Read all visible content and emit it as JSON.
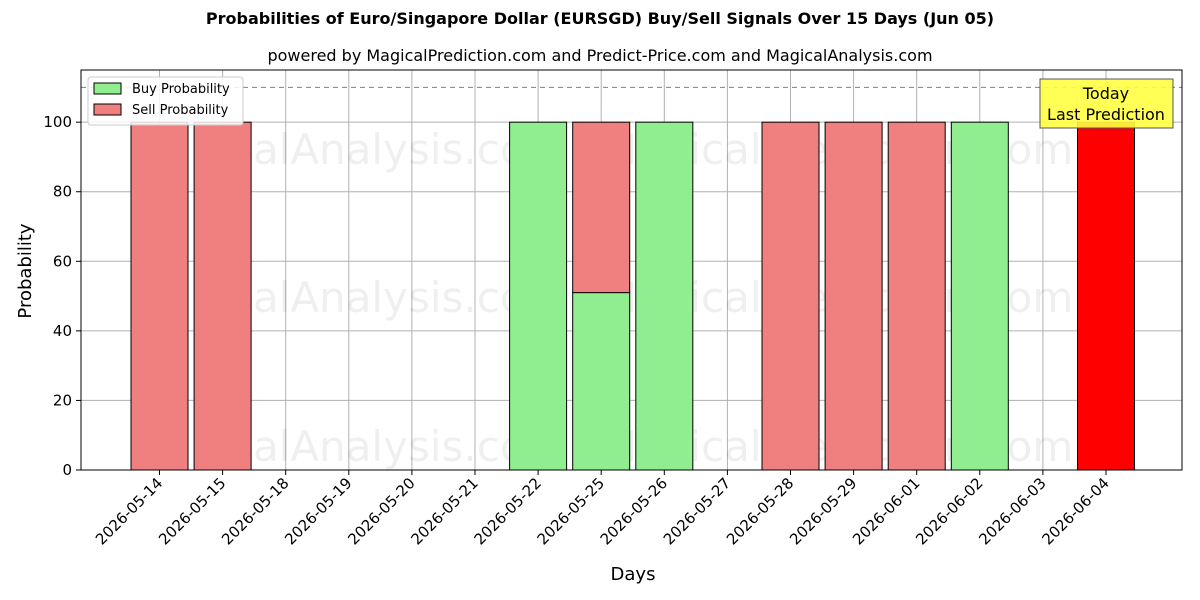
{
  "chart_data": {
    "type": "bar",
    "title": "Probabilities of Euro/Singapore Dollar (EURSGD) Buy/Sell Signals Over 15 Days (Jun 05)",
    "subtitle": "powered by MagicalPrediction.com and Predict-Price.com and MagicalAnalysis.com",
    "xlabel": "Days",
    "ylabel": "Probability",
    "ylim": [
      0,
      115
    ],
    "yticks": [
      0,
      20,
      40,
      60,
      80,
      100
    ],
    "grid": true,
    "legend_position": "top-left",
    "reference_line": 110,
    "categories": [
      "2026-05-14",
      "2026-05-15",
      "2026-05-18",
      "2026-05-19",
      "2026-05-20",
      "2026-05-21",
      "2026-05-22",
      "2026-05-25",
      "2026-05-26",
      "2026-05-27",
      "2026-05-28",
      "2026-05-29",
      "2026-06-01",
      "2026-06-02",
      "2026-06-03",
      "2026-06-04"
    ],
    "series": [
      {
        "name": "Buy Probability",
        "color": "#90ee90",
        "values": [
          0,
          0,
          0,
          0,
          0,
          0,
          100,
          51,
          100,
          0,
          0,
          0,
          0,
          100,
          0,
          0
        ]
      },
      {
        "name": "Sell Probability",
        "color": "#f08080",
        "values": [
          100,
          100,
          0,
          0,
          0,
          0,
          0,
          49,
          0,
          0,
          100,
          100,
          100,
          0,
          0,
          100
        ]
      }
    ],
    "highlight": {
      "index": 15,
      "color": "#ff0000"
    },
    "annotation": {
      "line1": "Today",
      "line2": "Last Prediction",
      "color": "#ffff44"
    },
    "watermarks": [
      "MagicalAnalysis.com",
      "MagicalPrediction.com"
    ]
  }
}
